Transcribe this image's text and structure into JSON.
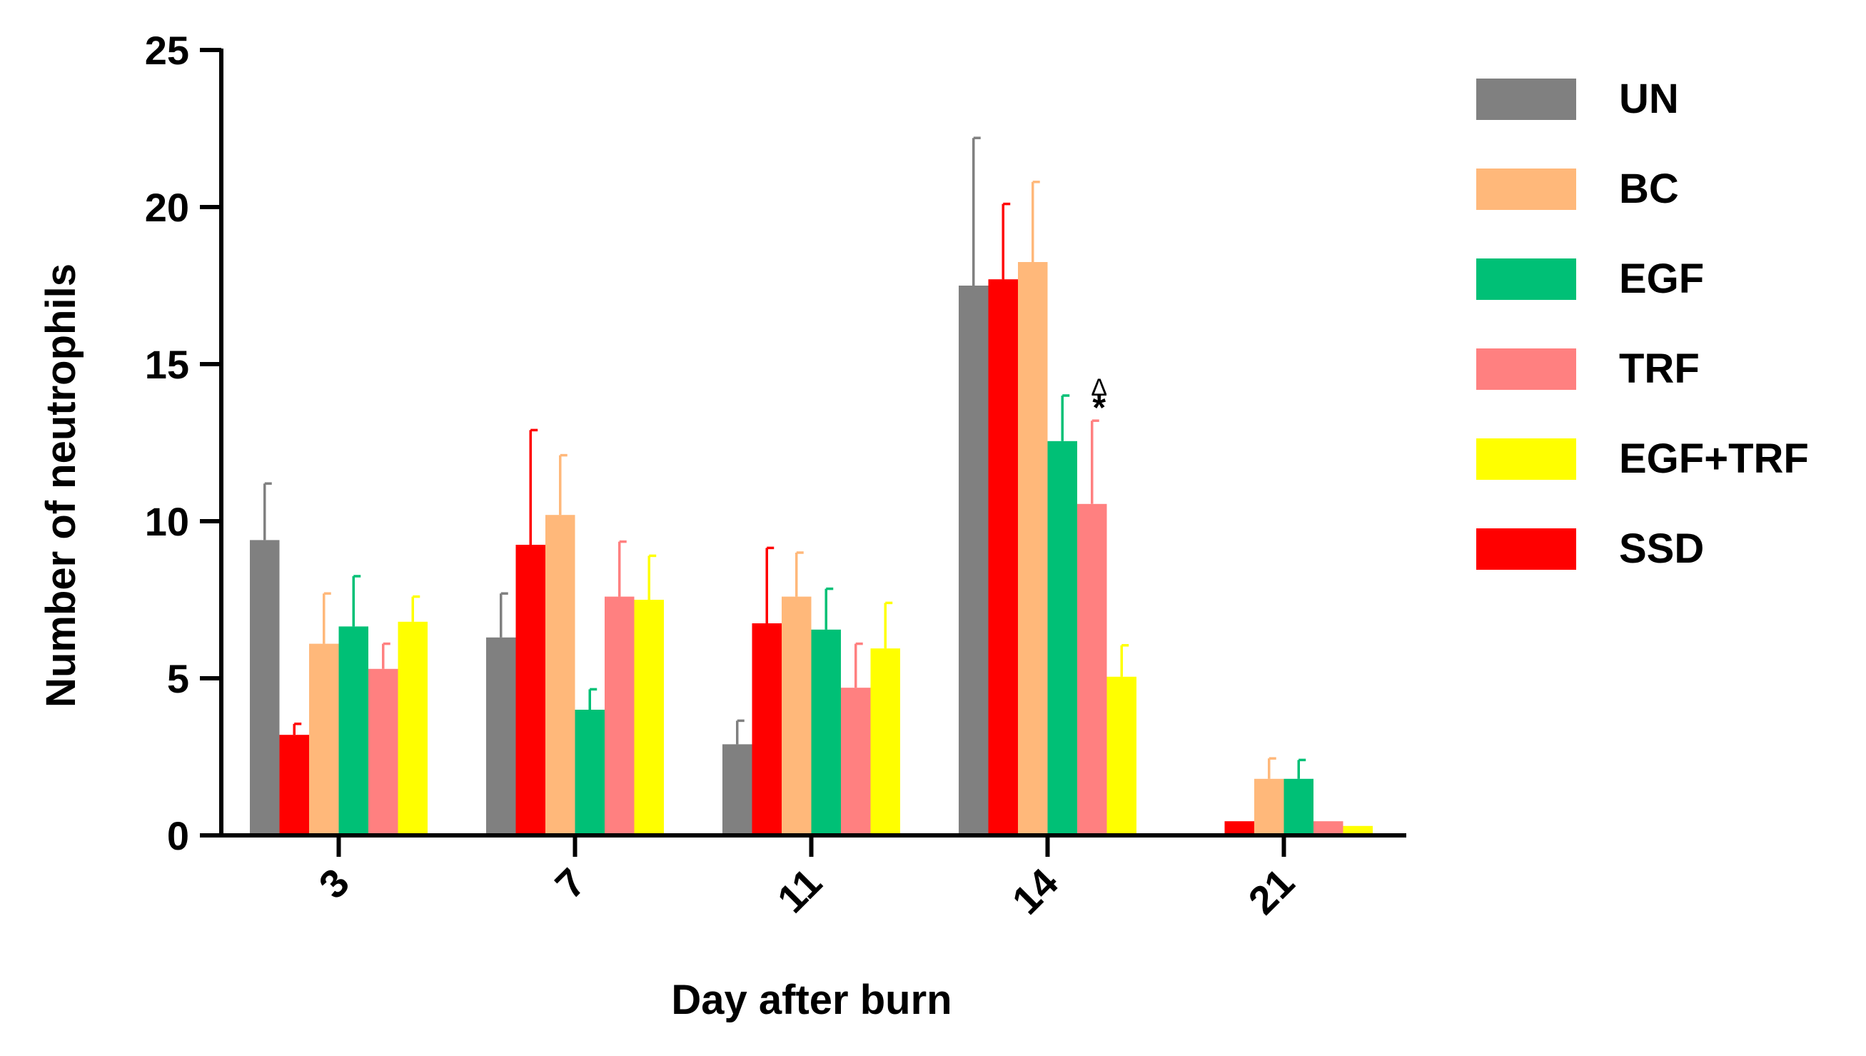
{
  "chart_data": {
    "type": "bar",
    "title": "",
    "xlabel": "Day after burn",
    "ylabel": "Number of neutrophils",
    "ylim": [
      0,
      25
    ],
    "yticks": [
      "0",
      "5",
      "10",
      "15",
      "20",
      "25"
    ],
    "categories": [
      "3",
      "7",
      "11",
      "14",
      "21"
    ],
    "legend_position": "right",
    "grid": false,
    "series": [
      {
        "name": "UN",
        "color": "#808080",
        "values": [
          9.4,
          6.3,
          2.9,
          17.5,
          0
        ],
        "errors": [
          1.8,
          1.4,
          0.75,
          4.7,
          0
        ]
      },
      {
        "name": "SSD",
        "color": "#ff0000",
        "values": [
          3.2,
          9.25,
          6.75,
          17.7,
          0.45
        ],
        "errors": [
          0.35,
          3.65,
          2.4,
          2.4,
          0
        ]
      },
      {
        "name": "BC",
        "color": "#ffb87a",
        "values": [
          6.1,
          10.2,
          7.6,
          18.25,
          1.8
        ],
        "errors": [
          1.6,
          1.9,
          1.4,
          2.55,
          0.65
        ]
      },
      {
        "name": "EGF",
        "color": "#00c076",
        "values": [
          6.65,
          4.0,
          6.55,
          12.55,
          1.8
        ],
        "errors": [
          1.6,
          0.65,
          1.3,
          1.45,
          0.6
        ]
      },
      {
        "name": "TRF",
        "color": "#ff8080",
        "values": [
          5.3,
          7.6,
          4.7,
          10.55,
          0.45
        ],
        "errors": [
          0.8,
          1.75,
          1.4,
          2.65,
          0
        ]
      },
      {
        "name": "EGF+TRF",
        "color": "#ffff00",
        "values": [
          6.8,
          7.5,
          5.95,
          5.05,
          0.3
        ],
        "errors": [
          0.8,
          1.4,
          1.45,
          1.0,
          0
        ]
      }
    ],
    "legend_order": [
      "UN",
      "BC",
      "EGF",
      "TRF",
      "EGF+TRF",
      "SSD"
    ],
    "annotations": [
      {
        "text": "Δ",
        "category": "14",
        "series": "TRF"
      },
      {
        "text": "*",
        "category": "14",
        "series": "TRF"
      }
    ]
  }
}
